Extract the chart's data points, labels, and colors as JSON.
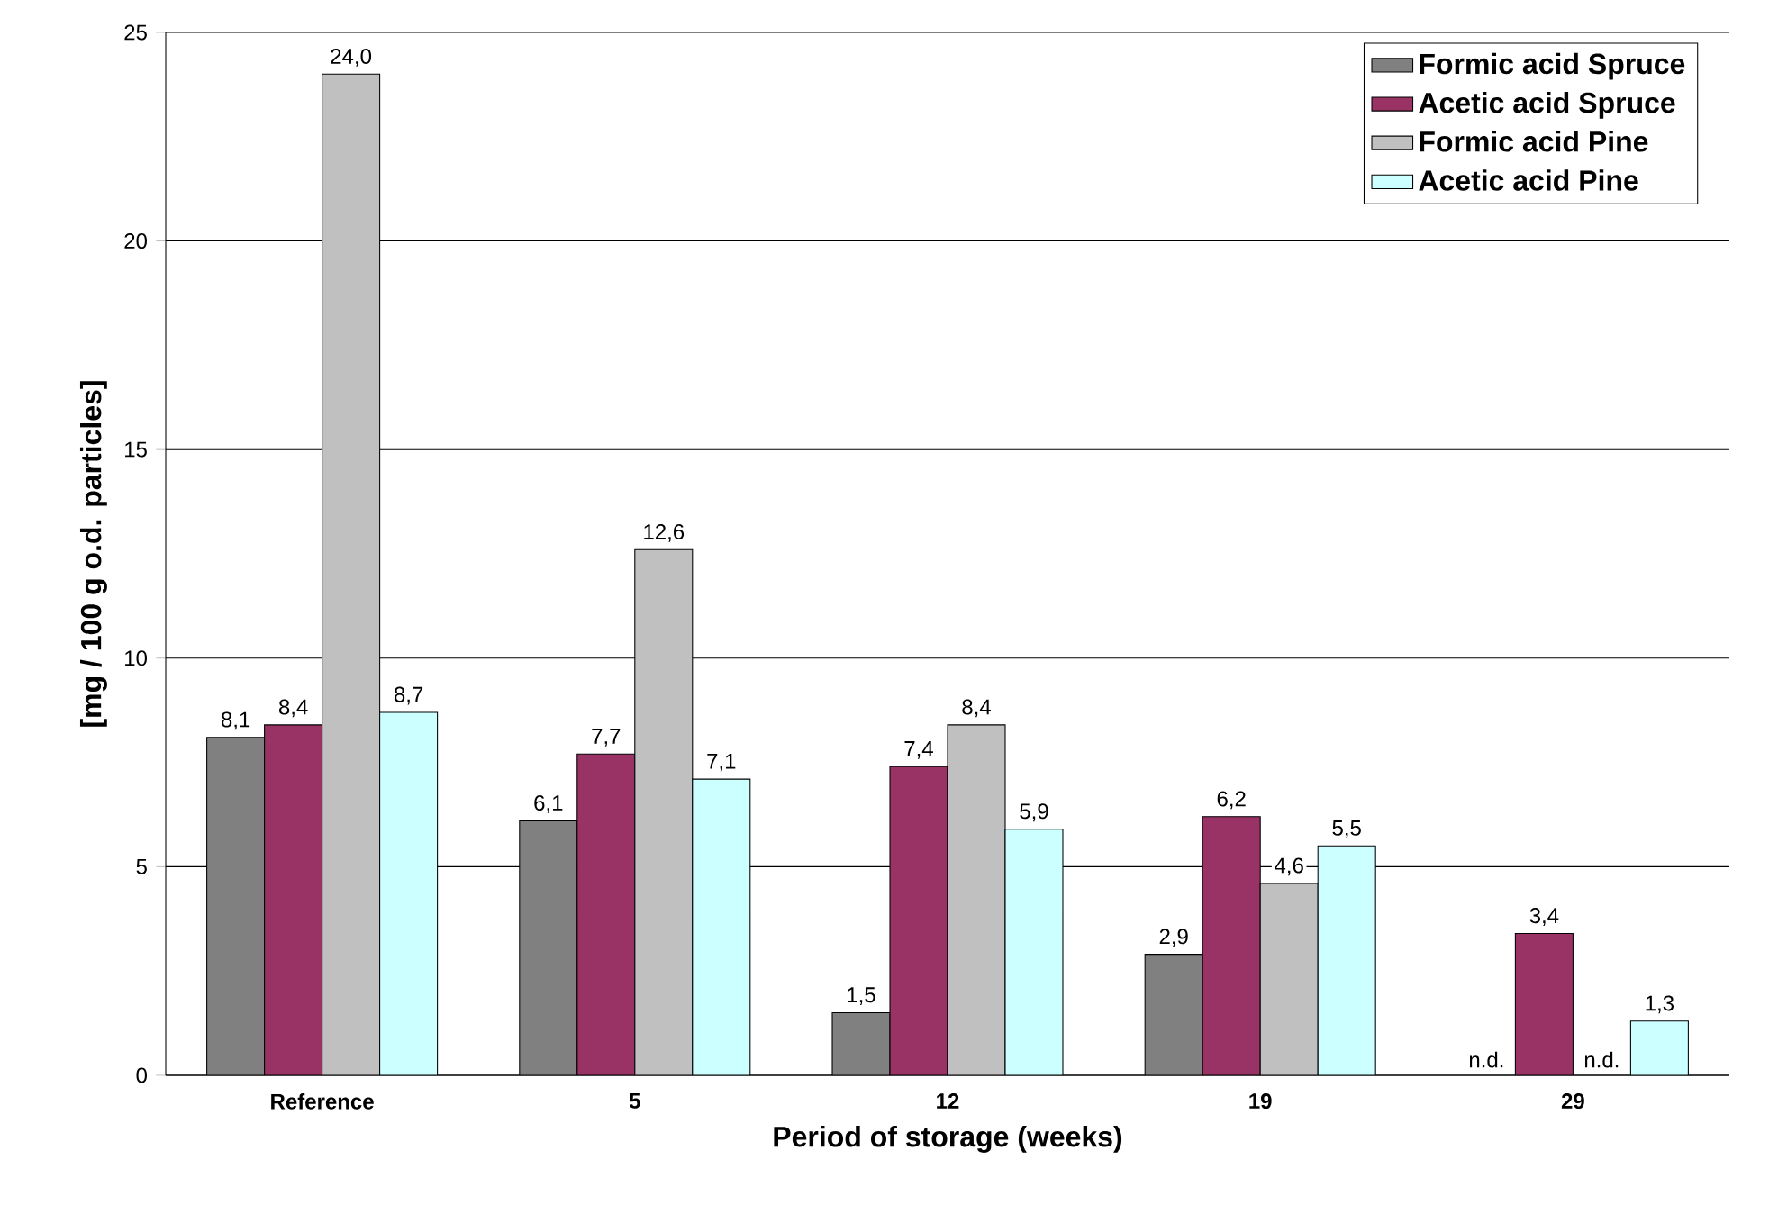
{
  "chart_data": {
    "type": "bar",
    "xlabel": "Period of storage (weeks)",
    "ylabel": "[mg / 100 g o.d. particles]",
    "categories": [
      "Reference",
      "5",
      "12",
      "19",
      "29"
    ],
    "series": [
      {
        "name": "Formic acid Spruce",
        "color": "#808080",
        "values": [
          8.1,
          6.1,
          1.5,
          2.9,
          null
        ],
        "value_labels": [
          "8,1",
          "6,1",
          "1,5",
          "2,9",
          "n.d."
        ]
      },
      {
        "name": "Acetic acid Spruce",
        "color": "#993366",
        "values": [
          8.4,
          7.7,
          7.4,
          6.2,
          3.4
        ],
        "value_labels": [
          "8,4",
          "7,7",
          "7,4",
          "6,2",
          "3,4"
        ]
      },
      {
        "name": "Formic acid Pine",
        "color": "#c0c0c0",
        "values": [
          24.0,
          12.6,
          8.4,
          4.6,
          null
        ],
        "value_labels": [
          "24,0",
          "12,6",
          "8,4",
          "4,6",
          "n.d."
        ]
      },
      {
        "name": "Acetic acid Pine",
        "color": "#ccffff",
        "values": [
          8.7,
          7.1,
          5.9,
          5.5,
          1.3
        ],
        "value_labels": [
          "8,7",
          "7,1",
          "5,9",
          "5,5",
          "1,3"
        ]
      }
    ],
    "ylim": [
      0,
      25
    ],
    "yticks": [
      0,
      5,
      10,
      15,
      20,
      25
    ],
    "grid": "y",
    "legend": "top right"
  }
}
